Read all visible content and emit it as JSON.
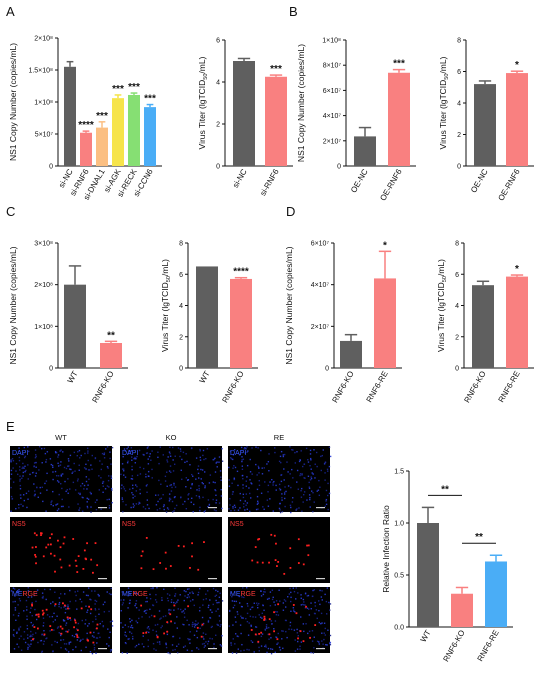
{
  "panels": [
    {
      "letter": "A"
    },
    {
      "letter": "B"
    },
    {
      "letter": "C"
    },
    {
      "letter": "D"
    },
    {
      "letter": "E"
    }
  ],
  "colors": {
    "dark": "#5f5f5f",
    "red": "#f98080",
    "orange": "#fbbf82",
    "yellow": "#f6e44a",
    "green": "#86df73",
    "blue": "#4aadf6"
  },
  "chart_data": [
    {
      "id": "A1",
      "type": "bar",
      "ylabel": "NS1 Copy Number (copies/mL)",
      "ylim": [
        0,
        200000000
      ],
      "yticks": [
        "0",
        "5×10⁷",
        "1×10⁸",
        "1.5×10⁸",
        "2×10⁸"
      ],
      "categories": [
        "si-NC",
        "si-RNF6",
        "si-DNAL1",
        "si-AGK",
        "si-RECK",
        "si-CCN6"
      ],
      "values": [
        155000000,
        52000000,
        60000000,
        106000000,
        111000000,
        92000000
      ],
      "errors": [
        8000000,
        2500000,
        9000000,
        5000000,
        3000000,
        4000000
      ],
      "significance": [
        "",
        "****",
        "***",
        "***",
        "***",
        "***"
      ],
      "colors": [
        "#5f5f5f",
        "#f98080",
        "#fbbf82",
        "#f6e44a",
        "#86df73",
        "#4aadf6"
      ]
    },
    {
      "id": "A2",
      "type": "bar",
      "ylabel": "Virus Titer (lgTCID50/mL)",
      "ylim": [
        0,
        6
      ],
      "yticks": [
        "0",
        "2",
        "4",
        "6"
      ],
      "categories": [
        "si-NC",
        "si-RNF6"
      ],
      "values": [
        5.0,
        4.25
      ],
      "errors": [
        0.12,
        0.08
      ],
      "significance": [
        "",
        "***"
      ],
      "colors": [
        "#5f5f5f",
        "#f98080"
      ]
    },
    {
      "id": "B1",
      "type": "bar",
      "ylabel": "NS1 Copy Number (copies/mL)",
      "ylim": [
        0,
        100000000
      ],
      "yticks": [
        "0",
        "2×10⁷",
        "4×10⁷",
        "6×10⁷",
        "8×10⁷",
        "1×10⁸"
      ],
      "categories": [
        "OE-NC",
        "OE-RNF6"
      ],
      "values": [
        23500000,
        74000000
      ],
      "errors": [
        7000000,
        2500000
      ],
      "significance": [
        "",
        "***"
      ],
      "colors": [
        "#5f5f5f",
        "#f98080"
      ]
    },
    {
      "id": "B2",
      "type": "bar",
      "ylabel": "Virus Titer (lgTCID50/mL)",
      "ylim": [
        0,
        8
      ],
      "yticks": [
        "0",
        "2",
        "4",
        "6",
        "8"
      ],
      "categories": [
        "OE-NC",
        "OE-RNF6"
      ],
      "values": [
        5.2,
        5.9
      ],
      "errors": [
        0.2,
        0.12
      ],
      "significance": [
        "",
        "*"
      ],
      "colors": [
        "#5f5f5f",
        "#f98080"
      ]
    },
    {
      "id": "C1",
      "type": "bar",
      "ylabel": "NS1 Copy Number (copies/mL)",
      "ylim": [
        0,
        300000000
      ],
      "yticks": [
        "0",
        "1×10⁸",
        "2×10⁸",
        "3×10⁸"
      ],
      "categories": [
        "WT",
        "RNF6-KO"
      ],
      "values": [
        200000000,
        60000000
      ],
      "errors": [
        45000000,
        4000000
      ],
      "significance": [
        "",
        "**"
      ],
      "colors": [
        "#5f5f5f",
        "#f98080"
      ]
    },
    {
      "id": "C2",
      "type": "bar",
      "ylabel": "Virus Titer (lgTCID50/mL)",
      "ylim": [
        0,
        8
      ],
      "yticks": [
        "0",
        "2",
        "4",
        "6",
        "8"
      ],
      "categories": [
        "WT",
        "RNF6-KO"
      ],
      "values": [
        6.5,
        5.7
      ],
      "errors": [
        0,
        0.08
      ],
      "significance": [
        "",
        "****"
      ],
      "colors": [
        "#5f5f5f",
        "#f98080"
      ]
    },
    {
      "id": "D1",
      "type": "bar",
      "ylabel": "NS1 Copy Number (copies/mL)",
      "ylim": [
        0,
        60000000
      ],
      "yticks": [
        "0",
        "2×10⁷",
        "4×10⁷",
        "6×10⁷"
      ],
      "categories": [
        "RNF6-KO",
        "RNF6-RE"
      ],
      "values": [
        13000000,
        43000000
      ],
      "errors": [
        3000000,
        13000000
      ],
      "significance": [
        "",
        "*"
      ],
      "colors": [
        "#5f5f5f",
        "#f98080"
      ]
    },
    {
      "id": "D2",
      "type": "bar",
      "ylabel": "Virus Titer (lgTCID50/mL)",
      "ylim": [
        0,
        8
      ],
      "yticks": [
        "0",
        "2",
        "4",
        "6",
        "8"
      ],
      "categories": [
        "RNF6-KO",
        "RNF6-RE"
      ],
      "values": [
        5.3,
        5.85
      ],
      "errors": [
        0.25,
        0.1
      ],
      "significance": [
        "",
        "*"
      ],
      "colors": [
        "#5f5f5f",
        "#f98080"
      ]
    },
    {
      "id": "E1",
      "type": "bar",
      "ylabel": "Relative Infection Ratio",
      "ylim": [
        0,
        1.5
      ],
      "yticks": [
        "0.0",
        "0.5",
        "1.0",
        "1.5"
      ],
      "categories": [
        "WT",
        "RNF6-KO",
        "RNF6-RE"
      ],
      "values": [
        1.0,
        0.32,
        0.63
      ],
      "errors": [
        0.15,
        0.06,
        0.06
      ],
      "significance": [
        "",
        "",
        ""
      ],
      "colors": [
        "#5f5f5f",
        "#f98080",
        "#4aadf6"
      ],
      "brackets": [
        {
          "from": 0,
          "to": 1,
          "label": "**"
        },
        {
          "from": 1,
          "to": 2,
          "label": "**"
        }
      ]
    }
  ],
  "microscopy": {
    "columns": [
      "WT",
      "KO",
      "RE"
    ],
    "rows": [
      {
        "label": "DAPI",
        "label_b": ""
      },
      {
        "label": "NS5",
        "label_b": ""
      },
      {
        "label": "ME",
        "label_b": "RGE"
      }
    ]
  }
}
